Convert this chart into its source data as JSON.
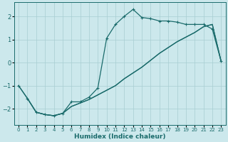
{
  "bg_color": "#cce8ec",
  "grid_color": "#a8cdd2",
  "line_color": "#1a6b6b",
  "xlabel": "Humidex (Indice chaleur)",
  "xlim": [
    -0.5,
    23.5
  ],
  "ylim": [
    -2.7,
    2.6
  ],
  "xticks": [
    0,
    1,
    2,
    3,
    4,
    5,
    6,
    7,
    8,
    9,
    10,
    11,
    12,
    13,
    14,
    15,
    16,
    17,
    18,
    19,
    20,
    21,
    22,
    23
  ],
  "yticks": [
    -2,
    -1,
    0,
    1,
    2
  ],
  "curve1_x": [
    0,
    1,
    2,
    3,
    4,
    5,
    6,
    7,
    8,
    9,
    10,
    11,
    12,
    13,
    14,
    15,
    16,
    17,
    18,
    19,
    20,
    21,
    22,
    23
  ],
  "curve1_y": [
    -1.0,
    -1.55,
    -2.15,
    -2.25,
    -2.3,
    -2.2,
    -1.7,
    -1.7,
    -1.5,
    -1.1,
    1.05,
    1.65,
    2.0,
    2.3,
    1.95,
    1.9,
    1.8,
    1.8,
    1.75,
    1.65,
    1.65,
    1.65,
    1.45,
    0.05
  ],
  "curve2_x": [
    0,
    1,
    2,
    3,
    4,
    5,
    6,
    7,
    8,
    9,
    10,
    11,
    12,
    13,
    14,
    15,
    16,
    17,
    18,
    19,
    20,
    21,
    22,
    23
  ],
  "curve2_y": [
    -1.0,
    -1.55,
    -2.15,
    -2.25,
    -2.3,
    -2.2,
    -1.9,
    -1.75,
    -1.6,
    -1.4,
    -1.2,
    -1.0,
    -0.7,
    -0.45,
    -0.2,
    0.1,
    0.4,
    0.65,
    0.9,
    1.1,
    1.3,
    1.55,
    1.65,
    0.05
  ],
  "curve3_x": [
    1,
    2,
    3,
    4,
    5,
    6,
    7,
    8,
    9,
    10,
    11,
    12,
    13,
    14,
    15,
    16,
    17,
    18,
    19,
    20,
    21,
    22,
    23
  ],
  "curve3_y": [
    -1.55,
    -2.15,
    -2.25,
    -2.3,
    -2.2,
    -1.9,
    -1.75,
    -1.6,
    -1.4,
    -1.2,
    -1.0,
    -0.7,
    -0.45,
    -0.2,
    0.1,
    0.4,
    0.65,
    0.9,
    1.1,
    1.3,
    1.55,
    1.65,
    0.05
  ]
}
